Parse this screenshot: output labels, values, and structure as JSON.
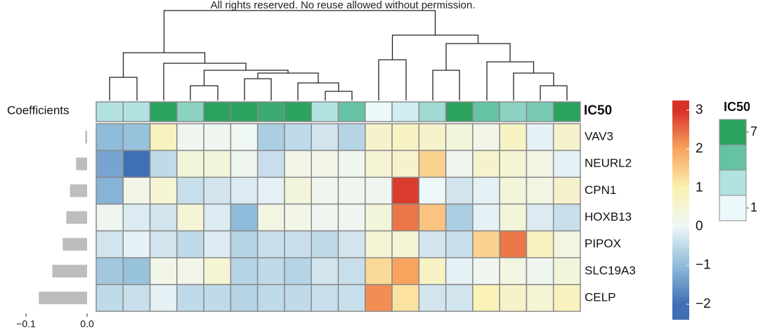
{
  "chart_data": {
    "type": "heatmap",
    "watermark": "All rights reserved. No reuse allowed without permission.",
    "rows": [
      "VAV3",
      "NEURL2",
      "CPN1",
      "HOXB13",
      "PIPOX",
      "SLC19A3",
      "CELP"
    ],
    "values": [
      [
        -1.0,
        -0.9,
        0.8,
        0.1,
        0.1,
        0.05,
        -0.7,
        -0.5,
        -0.3,
        -0.6,
        0.6,
        0.7,
        0.6,
        0.4,
        0.2,
        0.7,
        -0.1,
        0.6
      ],
      [
        -1.3,
        -2.1,
        -0.5,
        0.4,
        0.4,
        0.1,
        -0.4,
        0.2,
        0.2,
        0.1,
        0.5,
        0.6,
        1.4,
        0.1,
        0.6,
        0.5,
        0.3,
        -0.1
      ],
      [
        -1.1,
        0.2,
        0.5,
        -0.4,
        -0.3,
        -0.2,
        -0.1,
        0.4,
        0.1,
        0.1,
        0.1,
        2.9,
        0.0,
        -0.3,
        -0.1,
        0.4,
        0.3,
        0.6
      ],
      [
        0.1,
        -0.2,
        -0.3,
        0.5,
        -0.2,
        -1.0,
        0.3,
        0.2,
        0.1,
        0.1,
        0.4,
        2.4,
        1.6,
        -0.7,
        -0.1,
        0.4,
        -0.2,
        -0.4
      ],
      [
        -0.3,
        -0.1,
        -0.3,
        -0.5,
        -0.2,
        -0.6,
        -0.4,
        -0.4,
        -0.5,
        -0.3,
        0.5,
        0.5,
        -0.3,
        -0.4,
        1.4,
        2.4,
        0.8,
        0.3
      ],
      [
        -0.8,
        -0.9,
        0.2,
        0.2,
        0.5,
        -0.6,
        -0.5,
        -0.6,
        -0.3,
        -0.4,
        1.3,
        2.0,
        0.7,
        -0.1,
        0.1,
        0.3,
        0.1,
        0.4
      ],
      [
        -0.5,
        -0.4,
        -0.1,
        -0.5,
        -0.5,
        -0.6,
        -0.5,
        -0.5,
        -0.4,
        -0.4,
        2.2,
        1.2,
        -0.3,
        -0.3,
        0.9,
        0.6,
        0.5,
        0.8
      ]
    ],
    "color_scale": {
      "lim": [
        -2.4,
        3.25
      ],
      "ticks": [
        {
          "value": -2,
          "label": "−2"
        },
        {
          "value": -1,
          "label": "−1"
        },
        0,
        1,
        2,
        3
      ],
      "colors": [
        "#3f6fb5",
        "#8fbcda",
        "#eef7f7",
        "#fbf1b0",
        "#f9a45e",
        "#d73027"
      ]
    },
    "annotation": {
      "name": "IC50",
      "values": [
        3,
        3,
        7,
        4,
        7,
        7,
        6.5,
        7,
        3,
        5,
        1,
        2,
        3.5,
        7,
        5,
        4,
        4.5,
        7
      ],
      "lim": [
        1,
        7
      ],
      "ticks": [
        7,
        1
      ],
      "colors": [
        "#edf8fb",
        "#b2e2e2",
        "#66c2a4",
        "#2ca25f"
      ]
    },
    "coefficients": {
      "title": "Coefficients",
      "values": [
        -0.003,
        -0.018,
        -0.028,
        -0.034,
        -0.04,
        -0.057,
        -0.079
      ],
      "xlim": [
        -0.1,
        0
      ],
      "xticks": [
        {
          "value": -0.1,
          "label": "−0.1"
        },
        {
          "value": 0,
          "label": "0.0"
        }
      ],
      "color": "#bdbdbd"
    }
  }
}
